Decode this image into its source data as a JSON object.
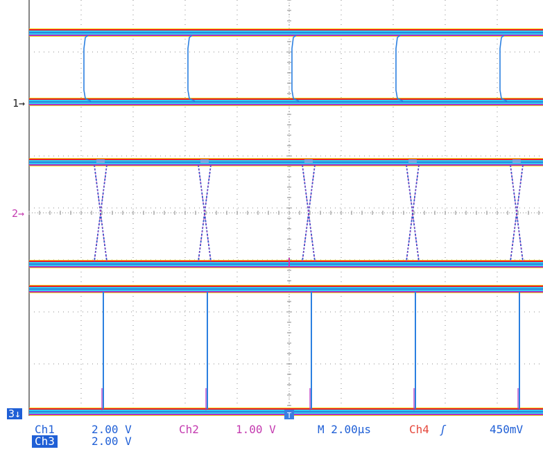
{
  "colors": {
    "ch1": "#1f5fd6",
    "ch2": "#c43bb0",
    "ch3": "#1f5fd6",
    "ch4": "#e5483c",
    "trace_core": "#35c8f0",
    "trace_edge_red": "#e81c2c",
    "trace_edge_yellow": "#f2d200",
    "trace_edge_magenta": "#b030c0",
    "grid": "#8a8a8a",
    "trigger_marker": "#3a7de0"
  },
  "markers": {
    "ch1": "1→",
    "ch2": "2→",
    "ch3": "3↓",
    "trigger": "T"
  },
  "readouts": {
    "ch1_label": "Ch1",
    "ch1_scale": "2.00 V",
    "ch2_label": "Ch2",
    "ch2_scale": "1.00 V",
    "timebase": "M 2.00µs",
    "trigger_source": "Ch4",
    "trigger_slope_icon": "rising-edge-icon",
    "trigger_slope_glyph": "ʃ",
    "trigger_level": "450mV",
    "ch3_label": "Ch3",
    "ch3_scale": "2.00 V"
  }
}
